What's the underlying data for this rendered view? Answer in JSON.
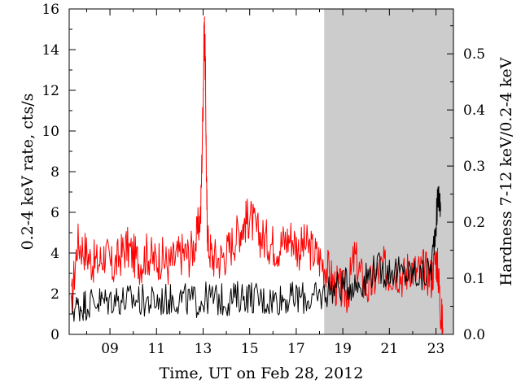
{
  "chart_data": {
    "type": "line",
    "xlabel": "Time, UT on Feb 28, 2012",
    "ylabel": "0.2-4 keV rate, cts/s",
    "ylabel_right": "Hardness 7-12 keV/0.2-4 keV",
    "xlim": [
      7.25,
      23.75
    ],
    "ylim": [
      0,
      16
    ],
    "ylim_right": [
      0,
      0.58
    ],
    "x_ticks": [
      9,
      11,
      13,
      15,
      17,
      19,
      21,
      23
    ],
    "x_tick_labels": [
      "09",
      "11",
      "13",
      "15",
      "17",
      "19",
      "21",
      "23"
    ],
    "y_ticks": [
      0,
      2,
      4,
      6,
      8,
      10,
      12,
      14,
      16
    ],
    "y_tick_labels": [
      "0",
      "2",
      "4",
      "6",
      "8",
      "10",
      "12",
      "14",
      "16"
    ],
    "y_right_ticks": [
      0.0,
      0.1,
      0.2,
      0.3,
      0.4,
      0.5
    ],
    "y_right_tick_labels": [
      "0.0",
      "0.1",
      "0.2",
      "0.3",
      "0.4",
      "0.5"
    ],
    "shaded_region": {
      "x_start": 18.2,
      "x_end": 23.75,
      "color": "#cccccc"
    },
    "grid": false,
    "series": [
      {
        "axis": "left",
        "color": "#ff0000",
        "x": [
          7.35,
          7.6,
          7.9,
          8.2,
          8.5,
          8.8,
          9.1,
          9.4,
          9.7,
          10.0,
          10.3,
          10.6,
          10.9,
          11.2,
          11.5,
          11.8,
          12.1,
          12.4,
          12.7,
          12.9,
          13.0,
          13.05,
          13.1,
          13.15,
          13.2,
          13.4,
          13.7,
          14.0,
          14.3,
          14.6,
          14.8,
          15.0,
          15.3,
          15.6,
          15.9,
          16.2,
          16.5,
          16.8,
          17.1,
          17.4,
          17.7,
          18.0,
          18.3,
          18.6,
          18.9,
          19.2,
          19.5,
          19.8,
          20.1,
          20.4,
          20.7,
          21.0,
          21.3,
          21.6,
          21.9,
          22.2,
          22.5,
          22.8,
          23.0,
          23.1,
          23.2,
          23.3
        ],
        "y": [
          1.5,
          4.5,
          4.2,
          3.6,
          3.5,
          4.0,
          3.2,
          3.8,
          4.3,
          3.9,
          3.5,
          4.0,
          3.6,
          3.8,
          3.4,
          3.7,
          4.0,
          3.9,
          4.6,
          6.0,
          11.5,
          15.3,
          13.0,
          7.0,
          4.5,
          3.8,
          3.7,
          4.0,
          4.6,
          5.2,
          5.5,
          5.8,
          5.0,
          4.7,
          4.5,
          4.3,
          4.6,
          4.8,
          4.2,
          4.4,
          4.1,
          3.7,
          3.3,
          2.5,
          2.2,
          2.0,
          3.8,
          2.8,
          2.2,
          2.8,
          3.3,
          3.0,
          3.2,
          2.8,
          3.4,
          3.0,
          3.2,
          2.8,
          3.8,
          3.0,
          1.2,
          0.3
        ]
      },
      {
        "axis": "right",
        "color": "#000000",
        "x": [
          7.35,
          7.7,
          8.0,
          8.4,
          8.8,
          9.2,
          9.6,
          10.0,
          10.4,
          10.8,
          11.2,
          11.6,
          12.0,
          12.4,
          12.8,
          13.2,
          13.6,
          14.0,
          14.4,
          14.8,
          15.2,
          15.6,
          16.0,
          16.4,
          16.8,
          17.2,
          17.6,
          18.0,
          18.4,
          18.8,
          19.2,
          19.6,
          20.0,
          20.4,
          20.8,
          21.2,
          21.6,
          22.0,
          22.4,
          22.8,
          23.0,
          23.1,
          23.2
        ],
        "y": [
          0.045,
          0.05,
          0.055,
          0.06,
          0.058,
          0.065,
          0.06,
          0.062,
          0.06,
          0.058,
          0.06,
          0.062,
          0.065,
          0.06,
          0.058,
          0.065,
          0.062,
          0.06,
          0.065,
          0.07,
          0.065,
          0.06,
          0.062,
          0.065,
          0.063,
          0.066,
          0.062,
          0.065,
          0.08,
          0.085,
          0.09,
          0.088,
          0.1,
          0.12,
          0.11,
          0.115,
          0.105,
          0.11,
          0.1,
          0.12,
          0.2,
          0.25,
          0.22
        ]
      }
    ]
  }
}
